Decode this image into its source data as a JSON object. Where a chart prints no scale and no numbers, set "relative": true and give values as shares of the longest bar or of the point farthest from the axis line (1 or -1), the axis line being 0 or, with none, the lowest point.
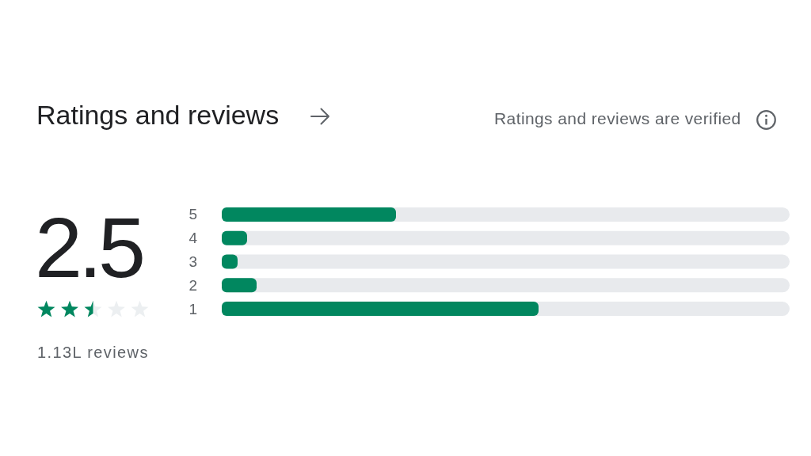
{
  "chart_data": {
    "type": "bar",
    "orientation": "horizontal",
    "relative": true,
    "title": "Ratings and reviews",
    "subtitle": "Ratings and reviews are verified",
    "annotations": [
      "2.5",
      "1.13L reviews"
    ],
    "categories": [
      "5",
      "4",
      "3",
      "2",
      "1"
    ],
    "values": [
      0.55,
      0.08,
      0.05,
      0.11,
      1
    ],
    "color": "#01875f",
    "tick_labels": "y"
  }
}
